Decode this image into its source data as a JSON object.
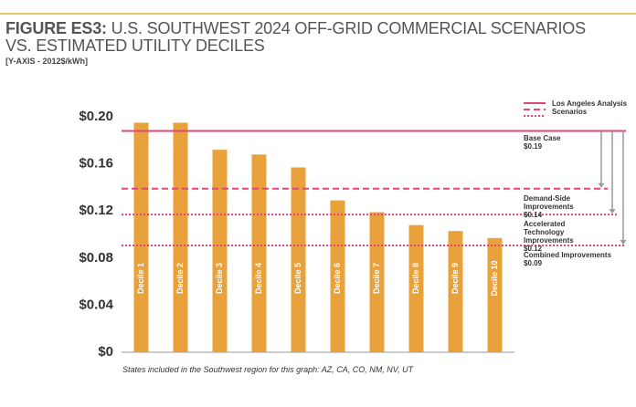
{
  "chart_data": {
    "type": "bar",
    "title_prefix": "FIGURE ES3:",
    "title": "U.S. SOUTHWEST 2024 OFF-GRID COMMERCIAL SCENARIOS VS. ESTIMATED UTILITY DECILES",
    "subtitle": "[Y-AXIS - 2012$/kWh]",
    "note": "States included in the Southwest region for this graph: AZ, CA, CO, NM, NV, UT",
    "categories": [
      "Decile 1",
      "Decile 2",
      "Decile 3",
      "Decile 4",
      "Decile 5",
      "Decile 6",
      "Decile 7",
      "Decile 8",
      "Decile 9",
      "Decile 10"
    ],
    "values": [
      0.195,
      0.195,
      0.172,
      0.168,
      0.157,
      0.129,
      0.119,
      0.108,
      0.103,
      0.097
    ],
    "color": "#E9A23B",
    "ylim": [
      0,
      0.2
    ],
    "yticks": [
      {
        "value": 0,
        "label": "$0"
      },
      {
        "value": 0.04,
        "label": "$0.04"
      },
      {
        "value": 0.08,
        "label": "$0.08"
      },
      {
        "value": 0.12,
        "label": "$0.12"
      },
      {
        "value": 0.16,
        "label": "$0.16"
      },
      {
        "value": 0.2,
        "label": "$0.20"
      }
    ],
    "grid": false,
    "legend_title": "Los Angeles Analysis Scenarios",
    "scenario_color": "#E0457B",
    "scenarios": [
      {
        "name": "Base Case",
        "value": 0.188,
        "value_label": "$0.19",
        "style": "solid"
      },
      {
        "name": "Demand-Side Improvements",
        "value": 0.139,
        "value_label": "$0.14",
        "style": "dashed"
      },
      {
        "name": "Accelerated Technology Improvements",
        "value": 0.117,
        "value_label": "$0.12",
        "style": "dotted"
      },
      {
        "name": "Combined Improvements",
        "value": 0.0907,
        "value_label": "$0.09",
        "style": "dotted"
      }
    ]
  }
}
